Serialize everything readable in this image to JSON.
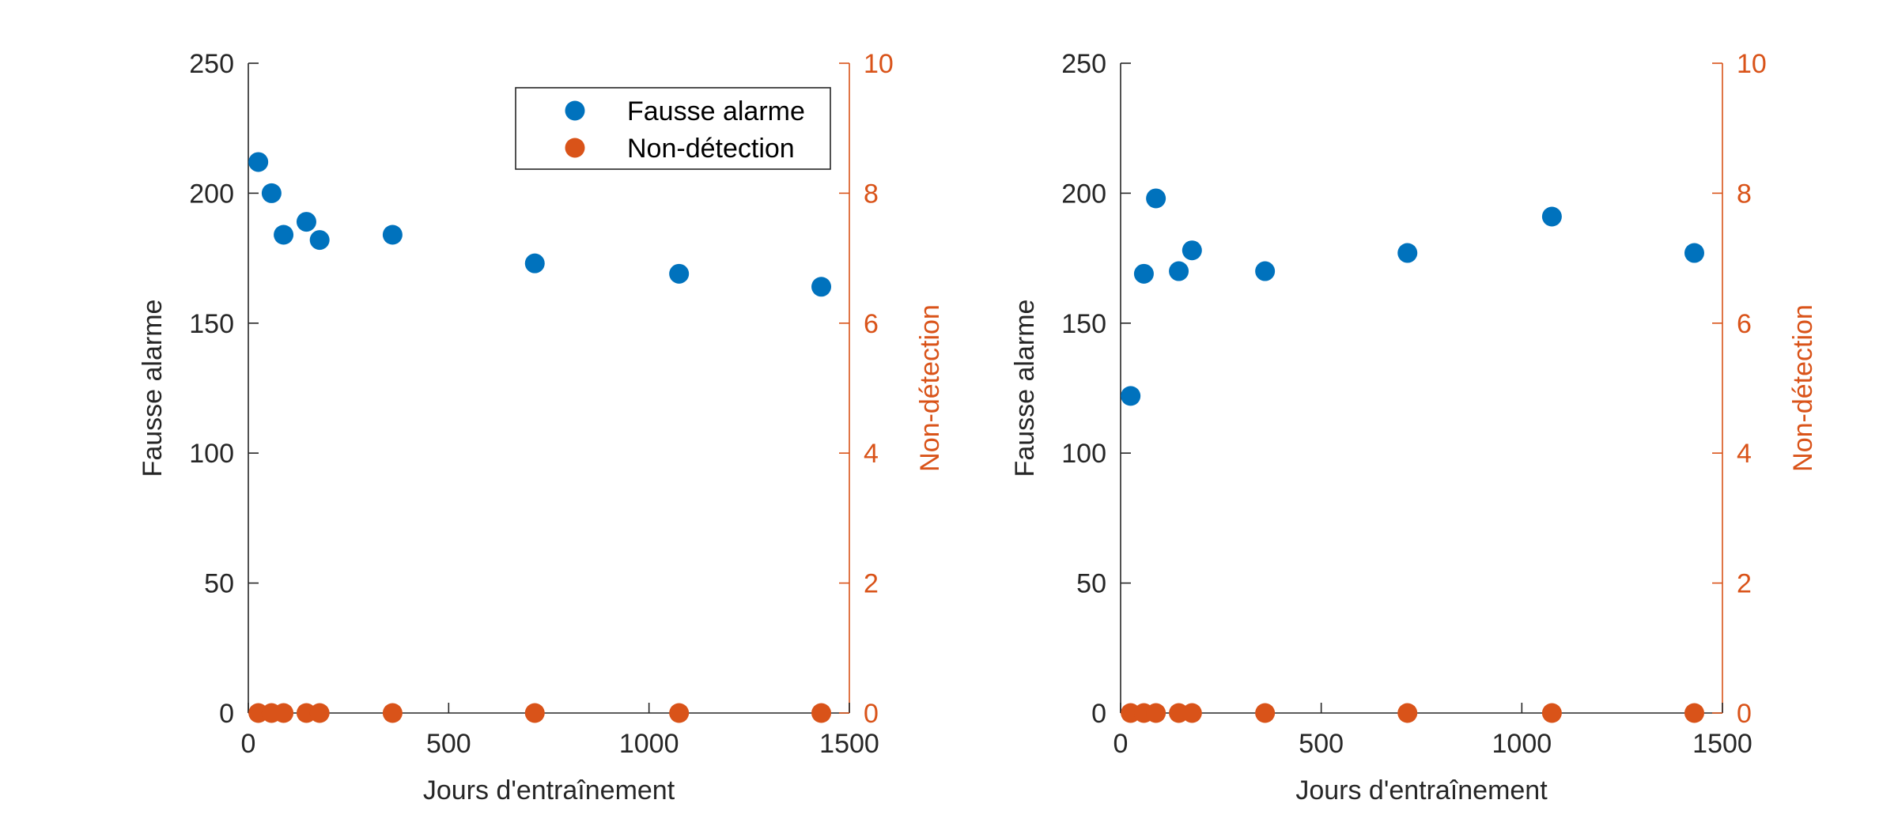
{
  "colors": {
    "primary": "#0072BD",
    "secondary": "#D95319",
    "axis": "#262626"
  },
  "legend": {
    "placement": "top-right",
    "entries": [
      "Fausse alarme",
      "Non-détection"
    ]
  },
  "chart_data": [
    {
      "type": "scatter",
      "xlabel": "Jours d'entraînement",
      "ylabel_left": "Fausse alarme",
      "ylabel_right": "Non-détection",
      "xlim": [
        0,
        1500
      ],
      "ylim_left": [
        0,
        250
      ],
      "ylim_right": [
        0,
        10
      ],
      "x_ticks": [
        "0",
        "500",
        "1000",
        "1500"
      ],
      "y_ticks_left": [
        "0",
        "50",
        "100",
        "150",
        "200",
        "250"
      ],
      "y_ticks_right": [
        "0",
        "2",
        "4",
        "6",
        "8",
        "10"
      ],
      "legend": true,
      "series": [
        {
          "name": "Fausse alarme",
          "axis": "left",
          "x": [
            25,
            58,
            88,
            145,
            178,
            360,
            715,
            1075,
            1430
          ],
          "y": [
            212,
            200,
            184,
            189,
            182,
            184,
            173,
            169,
            164
          ]
        },
        {
          "name": "Non-détection",
          "axis": "right",
          "x": [
            25,
            58,
            88,
            145,
            178,
            360,
            715,
            1075,
            1430
          ],
          "y": [
            0,
            0,
            0,
            0,
            0,
            0,
            0,
            0,
            0
          ]
        }
      ]
    },
    {
      "type": "scatter",
      "xlabel": "Jours d'entraînement",
      "ylabel_left": "Fausse alarme",
      "ylabel_right": "Non-détection",
      "xlim": [
        0,
        1500
      ],
      "ylim_left": [
        0,
        250
      ],
      "ylim_right": [
        0,
        10
      ],
      "x_ticks": [
        "0",
        "500",
        "1000",
        "1500"
      ],
      "y_ticks_left": [
        "0",
        "50",
        "100",
        "150",
        "200",
        "250"
      ],
      "y_ticks_right": [
        "0",
        "2",
        "4",
        "6",
        "8",
        "10"
      ],
      "legend": false,
      "series": [
        {
          "axis": "left",
          "x": [
            25,
            58,
            88,
            145,
            178,
            360,
            715,
            1075,
            1430
          ],
          "y": [
            122,
            169,
            198,
            170,
            178,
            170,
            177,
            191,
            177
          ]
        },
        {
          "axis": "right",
          "x": [
            25,
            58,
            88,
            145,
            178,
            360,
            715,
            1075,
            1430
          ],
          "y": [
            0,
            0,
            0,
            0,
            0,
            0,
            0,
            0,
            0
          ]
        }
      ]
    }
  ]
}
